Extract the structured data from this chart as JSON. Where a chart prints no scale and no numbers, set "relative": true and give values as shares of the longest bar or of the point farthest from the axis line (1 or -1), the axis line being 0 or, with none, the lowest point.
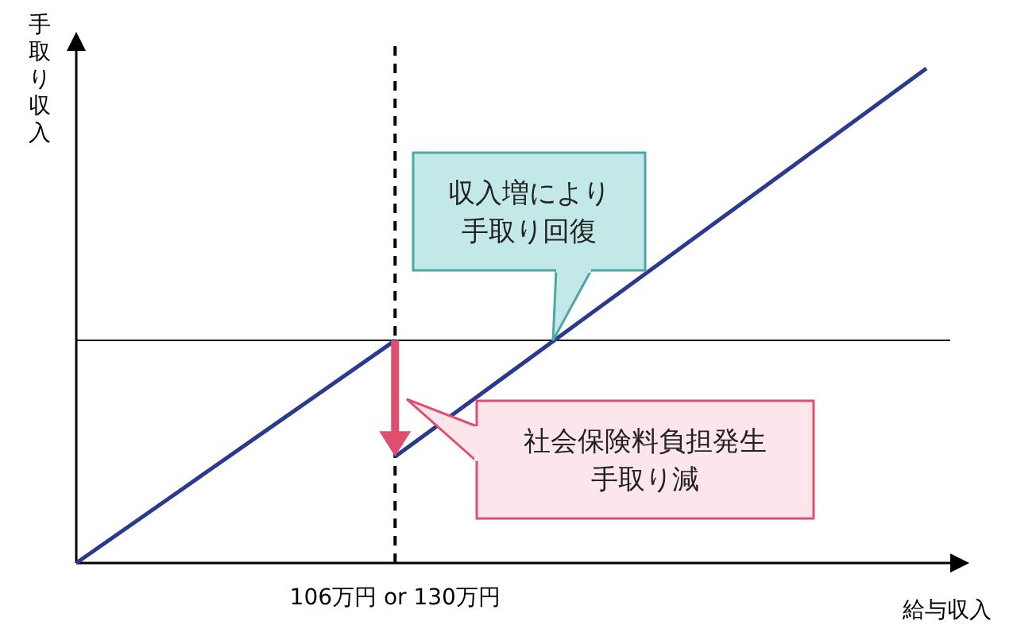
{
  "chart_data": {
    "type": "line",
    "relative": true,
    "xlabel": "給与収入",
    "ylabel": "手取り収入",
    "categories": [
      null,
      null,
      null,
      null,
      null,
      null,
      null,
      null,
      null
    ],
    "series": [
      {
        "color": "#2b3a8f",
        "values": [
          0,
          0.15,
          0.3,
          0.45,
          null,
          null,
          null,
          null,
          null
        ]
      },
      {
        "color": "#2b3a8f",
        "values": [
          null,
          null,
          null,
          0.215,
          0.372,
          0.529,
          0.686,
          0.843,
          1
        ]
      }
    ],
    "ref_lines": [
      {
        "axis": "x",
        "label": "106万円 or 130万円",
        "line_style": "dashed",
        "color": "#000000"
      },
      {
        "axis": "y",
        "value": 0.45,
        "line_style": "solid",
        "color": "#000000"
      }
    ],
    "annotations": [
      "収入増により手取り回復",
      "社会保険料負担発生手取り減"
    ],
    "line_style": "solid"
  }
}
